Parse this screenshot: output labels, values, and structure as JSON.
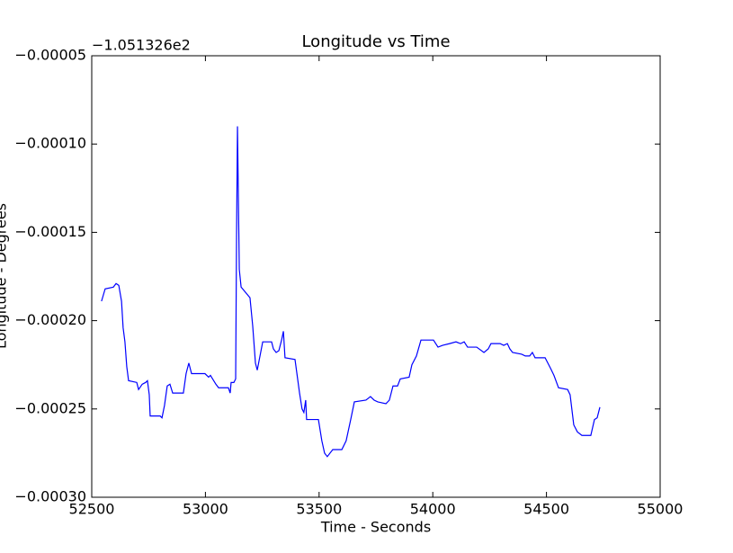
{
  "chart_data": {
    "type": "line",
    "title": "Longitude vs Time",
    "x_label": "Time - Seconds",
    "y_label": "Longitude - Degrees",
    "y_offset_label": "−1.051326e2",
    "color": "#0000ff",
    "x": [
      52543,
      52559,
      52595,
      52607,
      52619,
      52631,
      52638,
      52646,
      52654,
      52662,
      52698,
      52706,
      52722,
      52737,
      52745,
      52753,
      52757,
      52801,
      52809,
      52820,
      52832,
      52844,
      52856,
      52903,
      52915,
      52927,
      52939,
      52998,
      53014,
      53022,
      53046,
      53058,
      53101,
      53109,
      53113,
      53125,
      53133,
      53137,
      53141,
      53149,
      53157,
      53196,
      53208,
      53220,
      53228,
      53252,
      53291,
      53299,
      53311,
      53323,
      53335,
      53343,
      53350,
      53394,
      53414,
      53425,
      53433,
      53441,
      53445,
      53497,
      53512,
      53524,
      53536,
      53560,
      53600,
      53619,
      53639,
      53655,
      53706,
      53726,
      53742,
      53758,
      53794,
      53809,
      53825,
      53845,
      53857,
      53896,
      53908,
      53928,
      53948,
      54003,
      54023,
      54043,
      54074,
      54102,
      54122,
      54138,
      54153,
      54193,
      54225,
      54244,
      54256,
      54296,
      54312,
      54328,
      54339,
      54351,
      54391,
      54407,
      54426,
      54438,
      54450,
      54494,
      54518,
      54533,
      54553,
      54593,
      54604,
      54620,
      54636,
      54656,
      54695,
      54711,
      54723,
      54735
    ],
    "values": [
      -0.000189,
      -0.000182,
      -0.000181,
      -0.000179,
      -0.00018,
      -0.000189,
      -0.000204,
      -0.000212,
      -0.000226,
      -0.000234,
      -0.000235,
      -0.000239,
      -0.000236,
      -0.000235,
      -0.000234,
      -0.000242,
      -0.000254,
      -0.000254,
      -0.000255,
      -0.000248,
      -0.000237,
      -0.000236,
      -0.000241,
      -0.000241,
      -0.00023,
      -0.000224,
      -0.00023,
      -0.00023,
      -0.000232,
      -0.000231,
      -0.000236,
      -0.000238,
      -0.000238,
      -0.000241,
      -0.000235,
      -0.000235,
      -0.000233,
      -0.000151,
      -9e-05,
      -0.000171,
      -0.000181,
      -0.000187,
      -0.000203,
      -0.000224,
      -0.000228,
      -0.000212,
      -0.000212,
      -0.000216,
      -0.000218,
      -0.000217,
      -0.000211,
      -0.000206,
      -0.000221,
      -0.000222,
      -0.000241,
      -0.00025,
      -0.000252,
      -0.000245,
      -0.000256,
      -0.000256,
      -0.000268,
      -0.000275,
      -0.000277,
      -0.000273,
      -0.000273,
      -0.000268,
      -0.000256,
      -0.000246,
      -0.000245,
      -0.000243,
      -0.000245,
      -0.000246,
      -0.000247,
      -0.000245,
      -0.000237,
      -0.000237,
      -0.000233,
      -0.000232,
      -0.000225,
      -0.00022,
      -0.000211,
      -0.000211,
      -0.000215,
      -0.000214,
      -0.000213,
      -0.000212,
      -0.000213,
      -0.000212,
      -0.000215,
      -0.000215,
      -0.000218,
      -0.000216,
      -0.000213,
      -0.000213,
      -0.000214,
      -0.000213,
      -0.000216,
      -0.000218,
      -0.000219,
      -0.00022,
      -0.00022,
      -0.000218,
      -0.000221,
      -0.000221,
      -0.000227,
      -0.000231,
      -0.000238,
      -0.000239,
      -0.000242,
      -0.000259,
      -0.000263,
      -0.000265,
      -0.000265,
      -0.000256,
      -0.000255,
      -0.000249
    ],
    "xlim": [
      52500,
      55000
    ],
    "xticks": [
      52500,
      53000,
      53500,
      54000,
      54500,
      55000
    ],
    "ylim": [
      -0.0003,
      -5e-05
    ],
    "yticks": [
      {
        "value": -0.0003,
        "label": "−0.00030"
      },
      {
        "value": -0.00025,
        "label": "−0.00025"
      },
      {
        "value": -0.0002,
        "label": "−0.00020"
      },
      {
        "value": -0.00015,
        "label": "−0.00015"
      },
      {
        "value": -0.0001,
        "label": "−0.00010"
      },
      {
        "value": -5e-05,
        "label": "−0.00005"
      }
    ]
  }
}
